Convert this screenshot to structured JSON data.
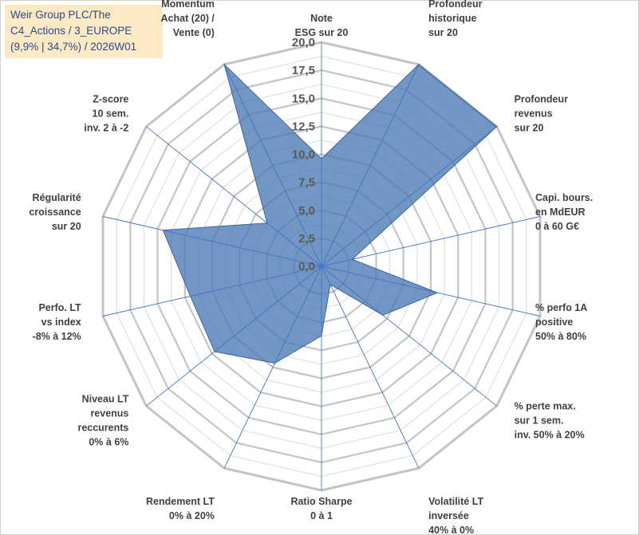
{
  "title": {
    "line1": "Weir Group PLC/The",
    "line2": "C4_Actions / 3_EUROPE",
    "line3": "(9,9% | 34,7%) / 2026W01"
  },
  "chart_data": {
    "type": "radar",
    "rmin": 0,
    "rmax": 20,
    "ticks": [
      "0,0",
      "2,5",
      "5,0",
      "7,5",
      "10,0",
      "12,5",
      "15,0",
      "17,5",
      "20,0"
    ],
    "tick_values": [
      0,
      2.5,
      5,
      7.5,
      10,
      12.5,
      15,
      17.5,
      20
    ],
    "categories": [
      [
        "Note",
        "ESG sur 20"
      ],
      [
        "Profondeur",
        "historique",
        "sur 20"
      ],
      [
        "Profondeur",
        "revenus",
        "sur 20"
      ],
      [
        "Capi. bours.",
        "en MdEUR",
        "0 à 60 G€"
      ],
      [
        "% perfo 1A",
        "positive",
        "50% à 80%"
      ],
      [
        "% perte max.",
        "sur 1 sem.",
        "inv. 50% à 20%"
      ],
      [
        "Volatilité LT",
        "inversée",
        "40% à 0%"
      ],
      [
        "Ratio Sharpe",
        "0 à 1"
      ],
      [
        "Rendement LT",
        "0% à 20%"
      ],
      [
        "Niveau LT",
        "revenus",
        "reccurents",
        "0% à 6%"
      ],
      [
        "Perfo. LT",
        "vs index",
        "-8% à 12%"
      ],
      [
        "Régularité",
        "croissance",
        "sur 20"
      ],
      [
        "Z-score",
        "10 sem.",
        "inv. 2 à -2"
      ],
      [
        "Momentum",
        "Achat (20) /",
        "Vente (0)"
      ]
    ],
    "series": [
      {
        "name": "Weir Group PLC/The",
        "color": "#4a7ab5",
        "values": [
          9.6,
          20,
          20,
          2.8,
          10.6,
          7.0,
          1.8,
          6.2,
          9.6,
          12.2,
          12.0,
          14.5,
          6.2,
          20
        ]
      }
    ]
  }
}
